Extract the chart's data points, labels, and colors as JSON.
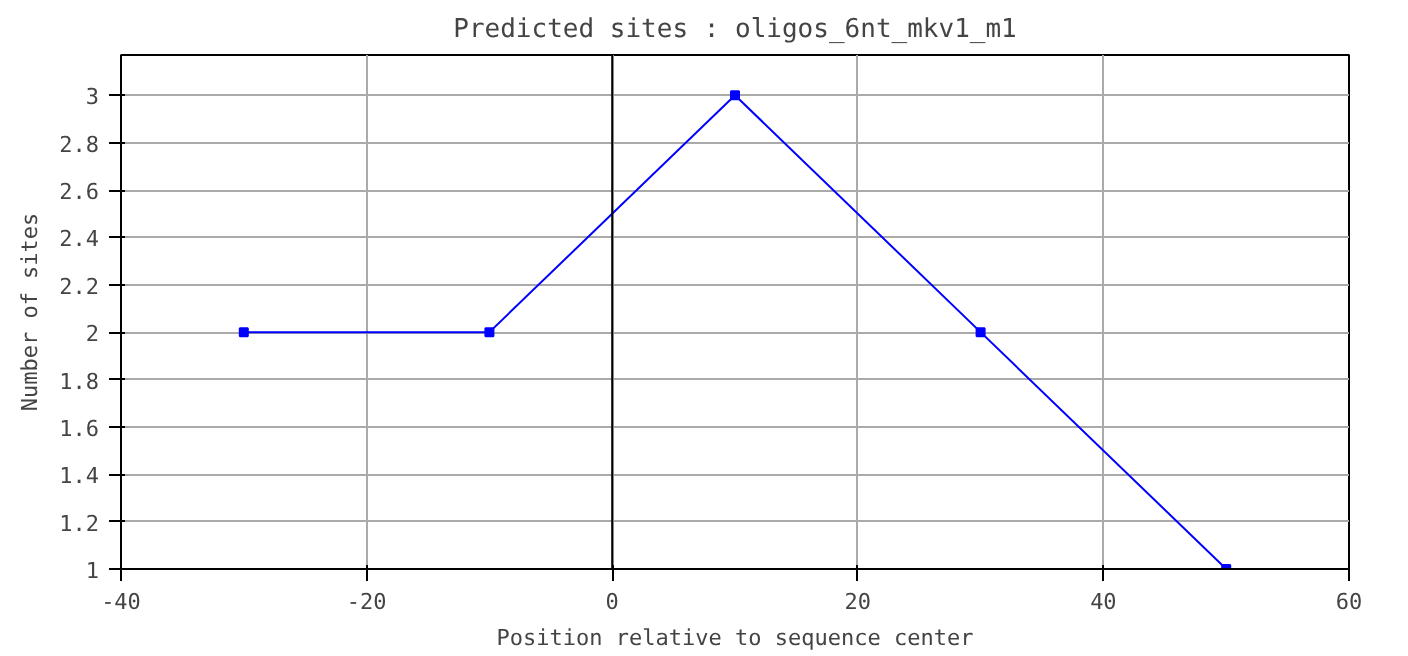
{
  "chart_data": {
    "type": "line",
    "title": "Predicted sites : oligos_6nt_mkv1_m1",
    "xlabel": "Position relative to sequence center",
    "ylabel": "Number of sites",
    "x": [
      -30,
      -10,
      10,
      30,
      50
    ],
    "series": [
      {
        "color": "#0000ff",
        "values": [
          2,
          2,
          3,
          2,
          1
        ]
      }
    ],
    "xlim": [
      -40,
      60
    ],
    "xticks": [
      -40,
      -20,
      0,
      20,
      40,
      60
    ],
    "ylim": [
      1,
      3.17
    ],
    "yticks": [
      1,
      1.2,
      1.4,
      1.6,
      1.8,
      2,
      2.2,
      2.4,
      2.6,
      2.8,
      3
    ],
    "ref_lines": [
      {
        "axis": "x",
        "value": 0,
        "color": "#000000"
      }
    ],
    "grid": true,
    "marker": "square",
    "line_style": "solid"
  }
}
